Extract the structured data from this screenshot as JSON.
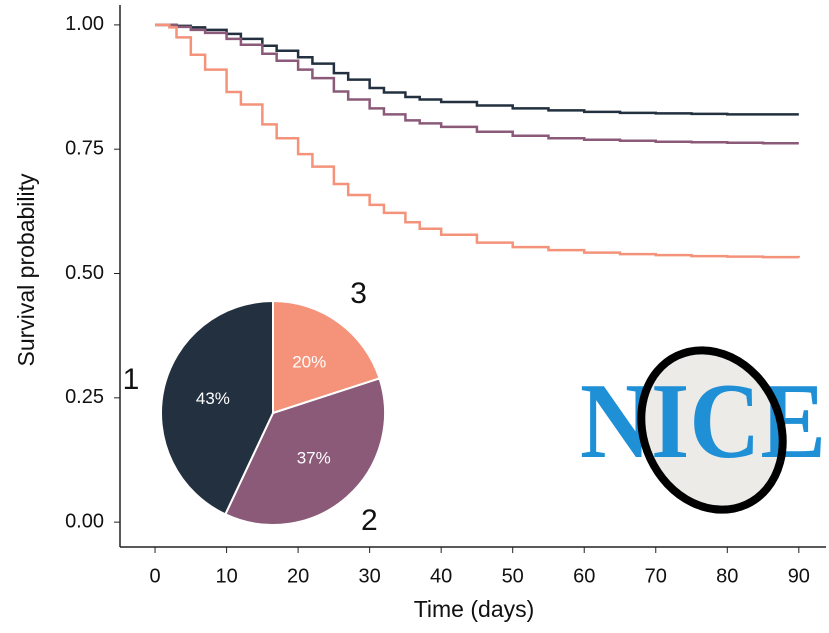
{
  "chart_data": [
    {
      "type": "line",
      "step": true,
      "x_label": "Time (days)",
      "y_label": "Survival probability",
      "x": [
        0,
        1,
        2,
        3,
        5,
        7,
        10,
        12,
        15,
        17,
        20,
        22,
        25,
        27,
        30,
        32,
        35,
        37,
        40,
        45,
        50,
        55,
        60,
        65,
        70,
        75,
        80,
        85,
        90
      ],
      "series": [
        {
          "color": "#22303f",
          "values": [
            1,
            1,
            1,
            0.998,
            0.995,
            0.99,
            0.982,
            0.972,
            0.958,
            0.948,
            0.935,
            0.922,
            0.903,
            0.89,
            0.873,
            0.864,
            0.855,
            0.85,
            0.845,
            0.838,
            0.832,
            0.828,
            0.825,
            0.823,
            0.822,
            0.821,
            0.82,
            0.82,
            0.82
          ]
        },
        {
          "color": "#8a5a78",
          "values": [
            1,
            1,
            1,
            0.996,
            0.99,
            0.984,
            0.972,
            0.96,
            0.942,
            0.928,
            0.91,
            0.893,
            0.866,
            0.85,
            0.832,
            0.82,
            0.808,
            0.802,
            0.795,
            0.785,
            0.777,
            0.772,
            0.769,
            0.767,
            0.765,
            0.764,
            0.763,
            0.762,
            0.762
          ]
        },
        {
          "color": "#f4937a",
          "values": [
            1,
            1,
            0.995,
            0.975,
            0.94,
            0.91,
            0.865,
            0.84,
            0.8,
            0.772,
            0.74,
            0.715,
            0.68,
            0.658,
            0.638,
            0.622,
            0.603,
            0.59,
            0.578,
            0.562,
            0.553,
            0.547,
            0.542,
            0.539,
            0.537,
            0.535,
            0.534,
            0.533,
            0.532
          ]
        }
      ],
      "xlim": [
        -4.9,
        93.8
      ],
      "ylim": [
        -0.05,
        1.04
      ],
      "xticks": [
        0,
        10,
        20,
        30,
        40,
        50,
        60,
        70,
        80,
        90
      ],
      "yticks": [
        {
          "value": 0,
          "label": "0.00"
        },
        0.25,
        {
          "value": 0.5,
          "label": "0.50"
        },
        0.75,
        {
          "value": 1,
          "label": "1.00"
        }
      ]
    },
    {
      "type": "pie",
      "categories": [
        "1",
        "2",
        "3"
      ],
      "values": [
        43,
        37,
        20
      ],
      "value_labels": [
        "43%",
        "37%",
        "20%"
      ],
      "colors": [
        "#22303f",
        "#8a5a78",
        "#f4937a"
      ]
    }
  ],
  "logo": "NICE"
}
